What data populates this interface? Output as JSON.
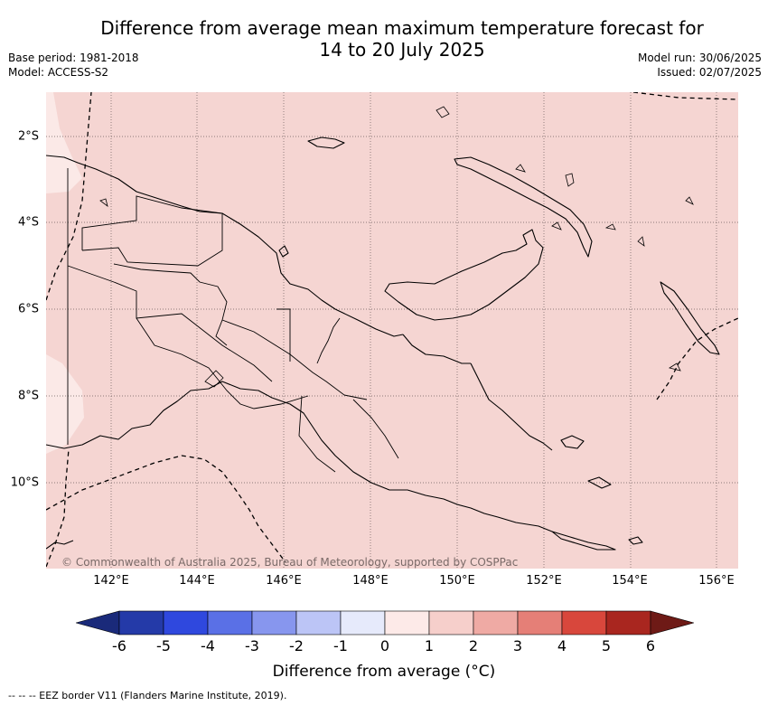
{
  "title": {
    "line1": "Difference from average mean maximum temperature forecast for",
    "line2": "14 to 20 July 2025"
  },
  "meta": {
    "base_period": "Base period: 1981-2018",
    "model": "Model: ACCESS-S2",
    "model_run": "Model run: 30/06/2025",
    "issued": "Issued: 02/07/2025"
  },
  "map": {
    "lat_labels": [
      "2°S",
      "4°S",
      "6°S",
      "8°S",
      "10°S"
    ],
    "lon_labels": [
      "142°E",
      "144°E",
      "146°E",
      "148°E",
      "150°E",
      "152°E",
      "154°E",
      "156°E"
    ],
    "fill_color": "#f5d5d2",
    "light_fill_color": "#fbe9e7",
    "copyright": "© Commonwealth of Australia 2025, Bureau of Meteorology, supported by COSPPac"
  },
  "colorbar": {
    "ticks": [
      "-6",
      "-5",
      "-4",
      "-3",
      "-2",
      "-1",
      "0",
      "1",
      "2",
      "3",
      "4",
      "5",
      "6"
    ],
    "colors": [
      "#243aa8",
      "#2f48de",
      "#5a70e6",
      "#8796ee",
      "#bcc5f6",
      "#e6eafb",
      "#fdeae8",
      "#f6cfcb",
      "#efaaa4",
      "#e57f77",
      "#d8473c",
      "#a9261f"
    ],
    "low_extend_color": "#1a2a7a",
    "high_extend_color": "#6e1a16",
    "label": "Difference from average (°C)"
  },
  "footer": {
    "eez_note": "--  --  -- EEZ border V11 (Flanders Marine Institute, 2019)."
  }
}
